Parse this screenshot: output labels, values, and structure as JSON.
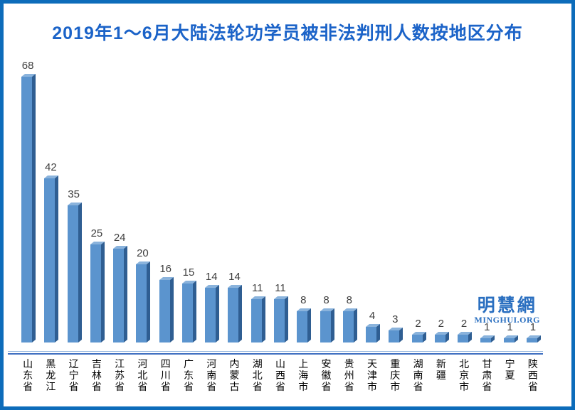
{
  "frame": {
    "border_color": "#0d6cba",
    "background_color": "#ffffff"
  },
  "title": {
    "text": "2019年1～6月大陆法轮功学员被非法判刑人数按地区分布",
    "color": "#1b63c8"
  },
  "watermark": {
    "logo_text": "明慧網",
    "site_text": "MINGHUI.ORG",
    "color": "#2a6fc0"
  },
  "chart_data": {
    "type": "bar",
    "title": "2019年1～6月大陆法轮功学员被非法判刑人数按地区分布",
    "categories": [
      "山东省",
      "黑龙江",
      "辽宁省",
      "吉林省",
      "江苏省",
      "河北省",
      "四川省",
      "广东省",
      "河南省",
      "内蒙古",
      "湖北省",
      "山西省",
      "上海市",
      "安徽省",
      "贵州省",
      "天津市",
      "重庆市",
      "湖南省",
      "新疆",
      "北京市",
      "甘肃省",
      "宁夏",
      "陕西省"
    ],
    "values": [
      68,
      42,
      35,
      25,
      24,
      20,
      16,
      15,
      14,
      14,
      11,
      11,
      8,
      8,
      8,
      4,
      3,
      2,
      2,
      2,
      1,
      1,
      1
    ],
    "xlabel": "",
    "ylabel": "",
    "ylim": [
      0,
      70
    ],
    "grid": false,
    "legend": "none",
    "value_labels_shown": true,
    "bar_style": "3d",
    "bar_face_color": "#5b94ce",
    "bar_side_color": "#2f5e92",
    "bar_top_color": "#8ab3dc",
    "value_label_color": "#3f3f3f",
    "axis_line_light_color": "#93b5dd",
    "axis_line_main_color": "#3f6fc1",
    "tick_label_orientation": "vertical"
  }
}
